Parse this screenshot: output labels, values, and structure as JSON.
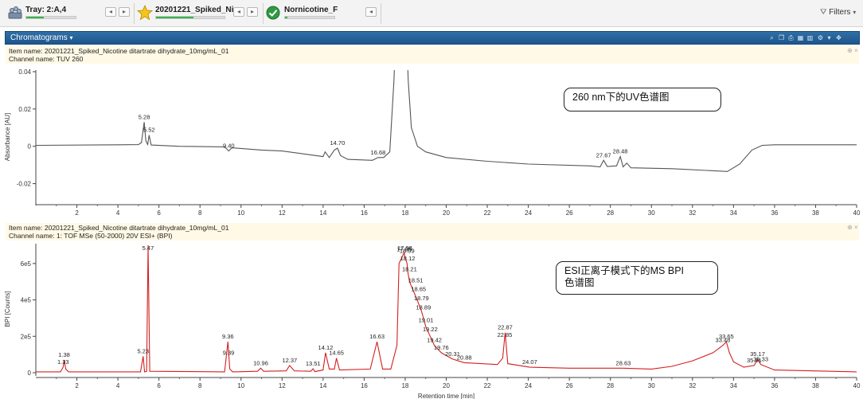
{
  "toolbar": {
    "tray_label": "Tray: 2:A,4",
    "sample_label": "20201221_Spiked_Ni...",
    "compound_label": "Nornicotine_F",
    "filters_label": "Filters",
    "tray_progress": 0.35,
    "sample_progress": 0.55,
    "compound_progress": 0.05
  },
  "panel": {
    "title": "Chromatograms"
  },
  "pane1": {
    "item_name": "Item name: 20201221_Spiked_Nicotine ditartrate dihydrate_10mg/mL_01",
    "channel_name": "Channel name: TUV 260",
    "callout": "260 nm下的UV色谱图"
  },
  "pane2": {
    "item_name": "Item name: 20201221_Spiked_Nicotine ditartrate dihydrate_10mg/mL_01",
    "channel_name": "Channel name: 1: TOF MSe (50-2000) 20V ESI+ (BPI)",
    "callout_line1": "ESI正离子模式下的MS BPI",
    "callout_line2": "色谱图"
  },
  "chart_data": [
    {
      "type": "line",
      "ylabel": "Absorbance [AU]",
      "xlim": [
        0,
        40
      ],
      "ylim": [
        -0.03,
        0.04
      ],
      "yticks": [
        -0.02,
        0,
        0.02,
        0.04
      ],
      "ytick_labels": [
        "-0.02",
        "0",
        "0.02",
        "0.04"
      ],
      "xticks": [
        2,
        4,
        6,
        8,
        10,
        12,
        14,
        16,
        18,
        20,
        22,
        24,
        26,
        28,
        30,
        32,
        34,
        36,
        38,
        40
      ],
      "series": [
        {
          "color": "#555555",
          "points": [
            [
              0,
              0.0005
            ],
            [
              4,
              0.0008
            ],
            [
              5.0,
              0.0009
            ],
            [
              5.15,
              0.002
            ],
            [
              5.28,
              0.013
            ],
            [
              5.36,
              0.003
            ],
            [
              5.45,
              0.001
            ],
            [
              5.52,
              0.006
            ],
            [
              5.62,
              0.0007
            ],
            [
              7,
              0.0
            ],
            [
              9.2,
              -0.0003
            ],
            [
              9.4,
              -0.0025
            ],
            [
              9.55,
              -0.0008
            ],
            [
              11,
              -0.002
            ],
            [
              12,
              -0.0025
            ],
            [
              14,
              -0.0055
            ],
            [
              14.1,
              -0.003
            ],
            [
              14.3,
              -0.006
            ],
            [
              14.55,
              -0.002
            ],
            [
              14.7,
              -0.001
            ],
            [
              14.85,
              -0.005
            ],
            [
              15.2,
              -0.007
            ],
            [
              16.4,
              -0.0075
            ],
            [
              16.68,
              -0.006
            ],
            [
              16.95,
              -0.006
            ],
            [
              17.25,
              -0.003
            ],
            [
              17.45,
              0.035
            ],
            [
              17.5,
              0.05
            ],
            [
              18.1,
              0.05
            ],
            [
              18.15,
              0.035
            ],
            [
              18.3,
              0.01
            ],
            [
              18.6,
              0.0
            ],
            [
              19,
              -0.003
            ],
            [
              20,
              -0.006
            ],
            [
              22,
              -0.008
            ],
            [
              24,
              -0.0095
            ],
            [
              27,
              -0.0105
            ],
            [
              27.5,
              -0.011
            ],
            [
              27.67,
              -0.0075
            ],
            [
              27.85,
              -0.0108
            ],
            [
              28.3,
              -0.0105
            ],
            [
              28.48,
              -0.0055
            ],
            [
              28.62,
              -0.011
            ],
            [
              28.8,
              -0.009
            ],
            [
              29,
              -0.0115
            ],
            [
              31,
              -0.012
            ],
            [
              33.7,
              -0.0135
            ],
            [
              34.3,
              -0.0095
            ],
            [
              34.9,
              -0.002
            ],
            [
              35.4,
              0.0005
            ],
            [
              36,
              0.0008
            ],
            [
              40,
              0.0008
            ]
          ]
        }
      ],
      "peak_labels": [
        {
          "x": 5.28,
          "y": 0.013,
          "text": "5.28"
        },
        {
          "x": 5.52,
          "y": 0.006,
          "text": "5.52"
        },
        {
          "x": 9.4,
          "y": -0.0025,
          "text": "9.40"
        },
        {
          "x": 14.7,
          "y": -0.001,
          "text": "14.70"
        },
        {
          "x": 16.68,
          "y": -0.006,
          "text": "16.68"
        },
        {
          "x": 27.67,
          "y": -0.0075,
          "text": "27.67"
        },
        {
          "x": 28.48,
          "y": -0.0055,
          "text": "28.48"
        }
      ]
    },
    {
      "type": "line",
      "xlabel": "Retention time [min]",
      "ylabel": "BPI [Counts]",
      "xlim": [
        0,
        40
      ],
      "ylim": [
        0,
        700000
      ],
      "yticks": [
        0,
        200000,
        400000,
        600000
      ],
      "ytick_labels": [
        "0",
        "2e5",
        "4e5",
        "6e5"
      ],
      "xticks": [
        2,
        4,
        6,
        8,
        10,
        12,
        14,
        16,
        18,
        20,
        22,
        24,
        26,
        28,
        30,
        32,
        34,
        36,
        38,
        40
      ],
      "series": [
        {
          "color": "#d42020",
          "points": [
            [
              0,
              5000
            ],
            [
              1.2,
              5000
            ],
            [
              1.33,
              30000
            ],
            [
              1.38,
              70000
            ],
            [
              1.46,
              20000
            ],
            [
              1.6,
              5000
            ],
            [
              5.1,
              5000
            ],
            [
              5.23,
              90000
            ],
            [
              5.3,
              5000
            ],
            [
              5.4,
              8000
            ],
            [
              5.47,
              700000
            ],
            [
              5.55,
              8000
            ],
            [
              9.2,
              5000
            ],
            [
              9.36,
              170000
            ],
            [
              9.45,
              20000
            ],
            [
              9.6,
              5000
            ],
            [
              10.8,
              8000
            ],
            [
              10.96,
              25000
            ],
            [
              11.1,
              8000
            ],
            [
              12.2,
              10000
            ],
            [
              12.37,
              40000
            ],
            [
              12.6,
              10000
            ],
            [
              13.4,
              8000
            ],
            [
              13.51,
              22000
            ],
            [
              13.6,
              6000
            ],
            [
              14.0,
              15000
            ],
            [
              14.12,
              110000
            ],
            [
              14.3,
              20000
            ],
            [
              14.55,
              20000
            ],
            [
              14.65,
              80000
            ],
            [
              14.8,
              15000
            ],
            [
              16.3,
              20000
            ],
            [
              16.63,
              170000
            ],
            [
              16.9,
              20000
            ],
            [
              17.3,
              20000
            ],
            [
              17.6,
              150000
            ],
            [
              17.7,
              600000
            ],
            [
              17.95,
              660000
            ],
            [
              17.98,
              640000
            ],
            [
              18.09,
              600000
            ],
            [
              18.12,
              560000
            ],
            [
              18.21,
              500000
            ],
            [
              18.51,
              420000
            ],
            [
              18.65,
              380000
            ],
            [
              18.79,
              340000
            ],
            [
              18.89,
              300000
            ],
            [
              19.01,
              250000
            ],
            [
              19.22,
              200000
            ],
            [
              19.42,
              150000
            ],
            [
              19.76,
              110000
            ],
            [
              20.31,
              75000
            ],
            [
              20.88,
              55000
            ],
            [
              22.5,
              45000
            ],
            [
              22.75,
              80000
            ],
            [
              22.87,
              220000
            ],
            [
              23.0,
              50000
            ],
            [
              24.07,
              30000
            ],
            [
              26,
              25000
            ],
            [
              28.63,
              25000
            ],
            [
              30,
              20000
            ],
            [
              31,
              35000
            ],
            [
              32,
              65000
            ],
            [
              33.0,
              110000
            ],
            [
              33.48,
              150000
            ],
            [
              33.65,
              170000
            ],
            [
              33.8,
              110000
            ],
            [
              34.0,
              60000
            ],
            [
              34.5,
              30000
            ],
            [
              35.01,
              40000
            ],
            [
              35.17,
              75000
            ],
            [
              35.33,
              45000
            ],
            [
              36,
              15000
            ],
            [
              40,
              5000
            ]
          ]
        }
      ],
      "peak_labels": [
        {
          "x": 1.33,
          "y": 30000,
          "text": "1.33"
        },
        {
          "x": 1.38,
          "y": 70000,
          "text": "1.38"
        },
        {
          "x": 5.23,
          "y": 90000,
          "text": "5.23"
        },
        {
          "x": 5.47,
          "y": 700000,
          "text": "5.47"
        },
        {
          "x": 9.36,
          "y": 170000,
          "text": "9.36"
        },
        {
          "x": 9.39,
          "y": 80000,
          "text": "9.39"
        },
        {
          "x": 10.96,
          "y": 25000,
          "text": "10.96"
        },
        {
          "x": 12.37,
          "y": 40000,
          "text": "12.37"
        },
        {
          "x": 13.51,
          "y": 22000,
          "text": "13.51"
        },
        {
          "x": 14.12,
          "y": 110000,
          "text": "14.12"
        },
        {
          "x": 14.65,
          "y": 80000,
          "text": "14.65"
        },
        {
          "x": 16.63,
          "y": 170000,
          "text": "16.63"
        },
        {
          "x": 17.95,
          "y": 650000,
          "text": "17.95"
        },
        {
          "x": 17.98,
          "y": 660000,
          "text": "17.98"
        },
        {
          "x": 18.09,
          "y": 640000,
          "text": "18.09"
        },
        {
          "x": 18.12,
          "y": 600000,
          "text": "18.12"
        },
        {
          "x": 18.21,
          "y": 540000,
          "text": "18.21"
        },
        {
          "x": 18.51,
          "y": 480000,
          "text": "18.51"
        },
        {
          "x": 18.65,
          "y": 430000,
          "text": "18.65"
        },
        {
          "x": 18.79,
          "y": 380000,
          "text": "18.79"
        },
        {
          "x": 18.89,
          "y": 330000,
          "text": "18.89"
        },
        {
          "x": 19.01,
          "y": 260000,
          "text": "19.01"
        },
        {
          "x": 19.22,
          "y": 210000,
          "text": "19.22"
        },
        {
          "x": 19.42,
          "y": 150000,
          "text": "19.42"
        },
        {
          "x": 19.76,
          "y": 110000,
          "text": "19.76"
        },
        {
          "x": 20.31,
          "y": 75000,
          "text": "20.31"
        },
        {
          "x": 20.88,
          "y": 55000,
          "text": "20.88"
        },
        {
          "x": 22.85,
          "y": 180000,
          "text": "22.85"
        },
        {
          "x": 22.87,
          "y": 220000,
          "text": "22.87"
        },
        {
          "x": 24.07,
          "y": 30000,
          "text": "24.07"
        },
        {
          "x": 28.63,
          "y": 25000,
          "text": "28.63"
        },
        {
          "x": 33.48,
          "y": 150000,
          "text": "33.48"
        },
        {
          "x": 33.65,
          "y": 170000,
          "text": "33.65"
        },
        {
          "x": 35.01,
          "y": 40000,
          "text": "35.01"
        },
        {
          "x": 35.17,
          "y": 75000,
          "text": "35.17"
        },
        {
          "x": 35.33,
          "y": 45000,
          "text": "35.33"
        }
      ]
    }
  ]
}
